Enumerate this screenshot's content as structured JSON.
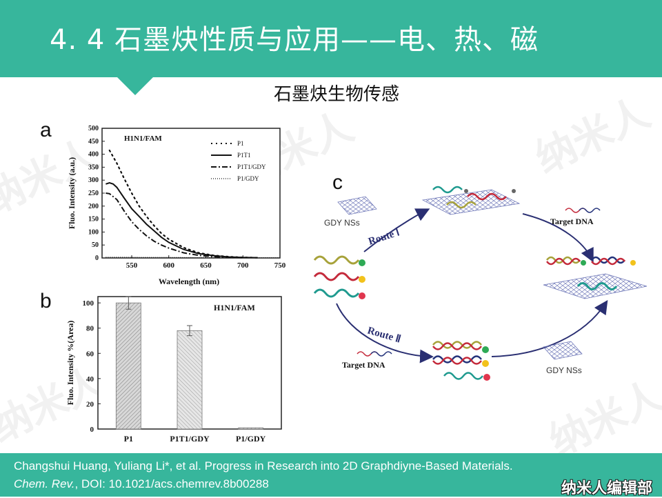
{
  "header": {
    "title": "4. 4  石墨炔性质与应用——电、热、磁",
    "subtitle": "石墨炔生物传感"
  },
  "watermark": "纳米人",
  "panels": {
    "a": {
      "label": "a",
      "tag": "H1N1/FAM",
      "xlabel": "Wavelength  (nm)",
      "ylabel": "Fluo.  Intensity    (a.u.)",
      "xticks": [
        "550",
        "600",
        "650",
        "700",
        "750"
      ],
      "yticks": [
        "0",
        "50",
        "100",
        "150",
        "200",
        "250",
        "300",
        "350",
        "400",
        "450",
        "500"
      ],
      "legend": [
        "P1",
        "P1T1",
        "P1T1/GDY",
        "P1/GDY"
      ]
    },
    "b": {
      "label": "b",
      "tag": "H1N1/FAM",
      "ylabel": "Fluo.  Intensity   %(Area)",
      "yticks": [
        "0",
        "20",
        "40",
        "60",
        "80",
        "100"
      ],
      "categories": [
        "P1",
        "P1T1/GDY",
        "P1/GDY"
      ]
    },
    "c": {
      "label": "c",
      "gdy_top": "GDY NSs",
      "gdy_bottom": "GDY NSs",
      "target_top": "Target DNA",
      "target_bottom": "Target DNA",
      "route1": "Route Ⅰ",
      "route2": "Route Ⅱ"
    }
  },
  "chart_data": [
    {
      "type": "line",
      "title": "H1N1/FAM",
      "xlabel": "Wavelength  (nm)",
      "ylabel": "Fluo.  Intensity    (a.u.)",
      "xlim": [
        510,
        750
      ],
      "ylim": [
        0,
        500
      ],
      "series": [
        {
          "name": "P1",
          "style": "dotted",
          "x": [
            520,
            530,
            540,
            550,
            560,
            570,
            580,
            590,
            600,
            620,
            640,
            660,
            680,
            700,
            720
          ],
          "values": [
            415,
            365,
            305,
            250,
            200,
            160,
            125,
            95,
            72,
            40,
            20,
            10,
            5,
            2,
            1
          ]
        },
        {
          "name": "P1T1",
          "style": "solid",
          "x": [
            515,
            520,
            525,
            530,
            540,
            550,
            560,
            570,
            580,
            590,
            600,
            620,
            640,
            660,
            680,
            700,
            720
          ],
          "values": [
            285,
            290,
            285,
            272,
            230,
            190,
            160,
            130,
            105,
            80,
            60,
            33,
            17,
            9,
            4,
            2,
            1
          ]
        },
        {
          "name": "P1T1/GDY",
          "style": "dashdot",
          "x": [
            515,
            520,
            530,
            540,
            550,
            560,
            570,
            580,
            590,
            600,
            620,
            640,
            660,
            680,
            700
          ],
          "values": [
            250,
            248,
            225,
            180,
            140,
            110,
            85,
            65,
            50,
            38,
            20,
            10,
            5,
            2,
            1
          ]
        },
        {
          "name": "P1/GDY",
          "style": "dotted-fine",
          "x": [
            515,
            540,
            570,
            600,
            650,
            700,
            750
          ],
          "values": [
            3,
            3,
            2,
            2,
            1,
            1,
            1
          ]
        }
      ]
    },
    {
      "type": "bar",
      "title": "H1N1/FAM",
      "ylabel": "Fluo.  Intensity   %(Area)",
      "ylim": [
        0,
        105
      ],
      "categories": [
        "P1",
        "P1T1/GDY",
        "P1/GDY"
      ],
      "values": [
        100,
        78,
        1
      ],
      "errors": [
        5,
        4,
        0
      ]
    }
  ],
  "footer": {
    "citation_line1": "Changshui  Huang,  Yuliang  Li*,  et al.  Progress  in  Research  into  2D  Graphdiyne-Based  Materials.",
    "journal": "Chem. Rev.",
    "citation_rest": ", DOI: 10.1021/acs.chemrev.8b00288",
    "brand": "纳米人编辑部"
  },
  "colors": {
    "accent": "#37b69c",
    "strand_green": "#2eaa55",
    "strand_olive": "#a7a23a",
    "strand_red": "#c42a3b",
    "strand_teal": "#1f9a8f",
    "strand_navy": "#23327a"
  }
}
